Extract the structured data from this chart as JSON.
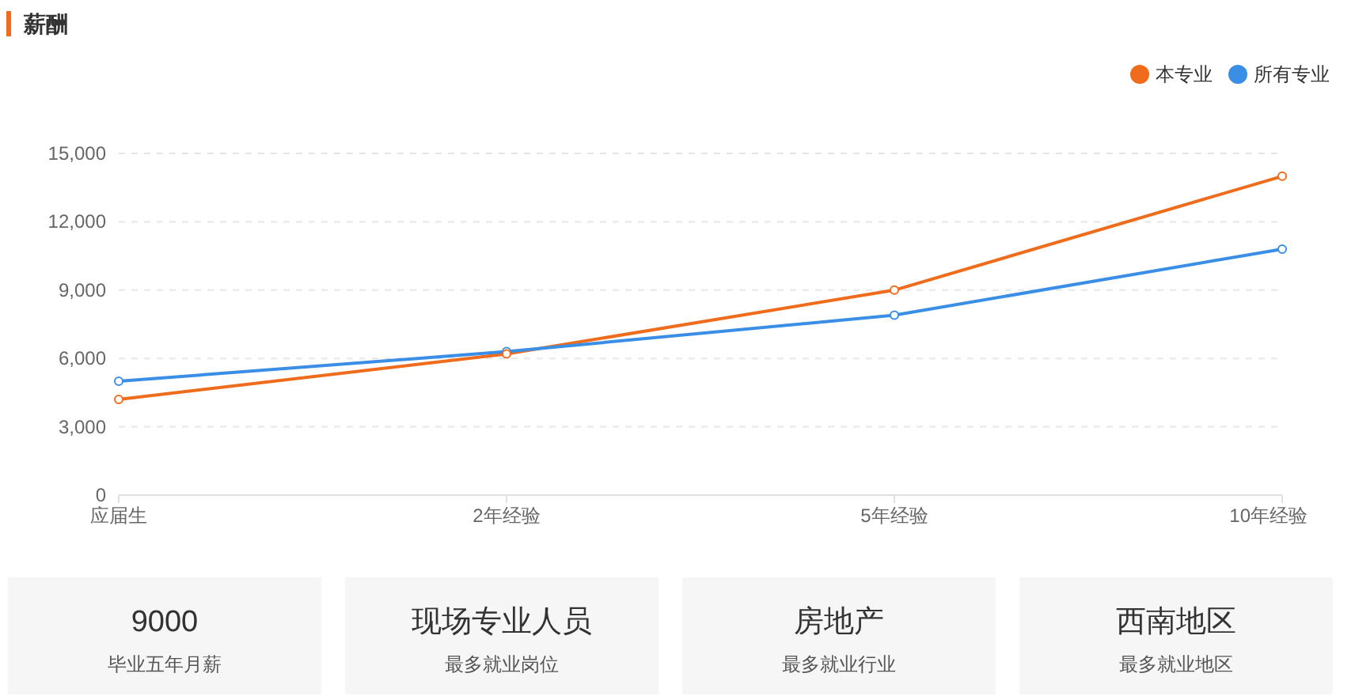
{
  "chart_data": [
    {
      "type": "line",
      "title": "薪酬",
      "categories": [
        "应届生",
        "2年经验",
        "5年经验",
        "10年经验"
      ],
      "series": [
        {
          "name": "本专业",
          "color": "#ee6c1c",
          "values": [
            4200,
            6200,
            9000,
            14000
          ]
        },
        {
          "name": "所有专业",
          "color": "#3a8ee6",
          "values": [
            5000,
            6300,
            7900,
            10800
          ]
        }
      ],
      "ylim": [
        0,
        15000
      ],
      "yticks": [
        {
          "value": 0,
          "label": "0"
        },
        {
          "value": 3000,
          "label": "3,000"
        },
        {
          "value": 6000,
          "label": "6,000"
        },
        {
          "value": 9000,
          "label": "9,000"
        },
        {
          "value": 12000,
          "label": "12,000"
        },
        {
          "value": 15000,
          "label": "15,000"
        }
      ],
      "grid": "y",
      "legend": "top right",
      "marker": "circle",
      "line_style": "solid"
    },
    {
      "type": "other",
      "annotations": [
        "9000",
        "毕业五年月薪",
        "现场专业人员",
        "最多就业岗位",
        "房地产",
        "最多就业行业",
        "西南地区",
        "最多就业地区"
      ]
    }
  ]
}
